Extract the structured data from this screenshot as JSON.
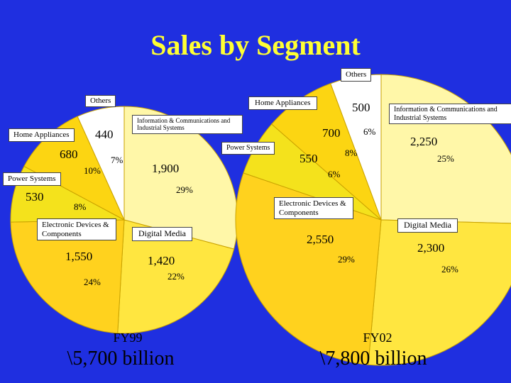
{
  "title": "Sales by Segment",
  "colors": {
    "background": "#1f2fe0",
    "title": "#ffff33",
    "slice_fills": [
      "#fff7a8",
      "#ffe640",
      "#ffd21e",
      "#f4e21c",
      "#fcd512",
      "#ffc414",
      "#ffffff"
    ]
  },
  "chart_data": [
    {
      "type": "pie",
      "period": "FY99",
      "total_label": "\\5,700 billion",
      "slices": [
        {
          "name": "Information & Communications and Industrial Systems",
          "value": "1,900",
          "percent": "29%",
          "v": 1900
        },
        {
          "name": "Digital Media",
          "value": "1,420",
          "percent": "22%",
          "v": 1420
        },
        {
          "name": "Electronic Devices & Components",
          "value": "1,550",
          "percent": "24%",
          "v": 1550
        },
        {
          "name": "Power Systems",
          "value": "530",
          "percent": "8%",
          "v": 530
        },
        {
          "name": "Home Appliances",
          "value": "680",
          "percent": "10%",
          "v": 680
        },
        {
          "name": "Others",
          "value": "440",
          "percent": "7%",
          "v": 440
        }
      ]
    },
    {
      "type": "pie",
      "period": "FY02",
      "total_label": "\\7,800 billion",
      "slices": [
        {
          "name": "Information & Communications and Industrial Systems",
          "value": "2,250",
          "percent": "25%",
          "v": 2250
        },
        {
          "name": "Digital Media",
          "value": "2,300",
          "percent": "26%",
          "v": 2300
        },
        {
          "name": "Electronic Devices & Components",
          "value": "2,550",
          "percent": "29%",
          "v": 2550
        },
        {
          "name": "Power Systems",
          "value": "550",
          "percent": "6%",
          "v": 550
        },
        {
          "name": "Home Appliances",
          "value": "700",
          "percent": "8%",
          "v": 700
        },
        {
          "name": "Others",
          "value": "500",
          "percent": "6%",
          "v": 500
        }
      ]
    }
  ]
}
